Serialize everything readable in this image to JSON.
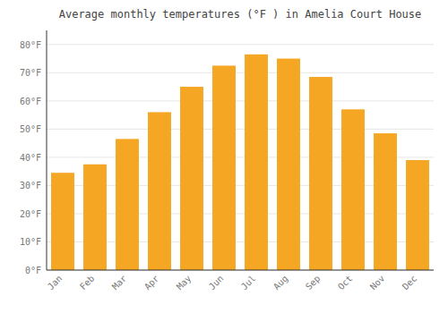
{
  "chart_data": {
    "type": "bar",
    "title": "Average monthly temperatures (°F ) in Amelia Court House",
    "categories": [
      "Jan",
      "Feb",
      "Mar",
      "Apr",
      "May",
      "Jun",
      "Jul",
      "Aug",
      "Sep",
      "Oct",
      "Nov",
      "Dec"
    ],
    "values": [
      34.5,
      37.5,
      46.5,
      56.0,
      65.0,
      72.5,
      76.5,
      75.0,
      68.5,
      57.0,
      48.5,
      39.0
    ],
    "color": "#F5A623",
    "ylim": [
      0,
      85
    ],
    "yticks": [
      {
        "value": 0,
        "label": "0°F"
      },
      {
        "value": 10,
        "label": "10°F"
      },
      {
        "value": 20,
        "label": "20°F"
      },
      {
        "value": 30,
        "label": "30°F"
      },
      {
        "value": 40,
        "label": "40°F"
      },
      {
        "value": 50,
        "label": "50°F"
      },
      {
        "value": 60,
        "label": "60°F"
      },
      {
        "value": 70,
        "label": "70°F"
      },
      {
        "value": 80,
        "label": "80°F"
      }
    ],
    "grid": true
  }
}
